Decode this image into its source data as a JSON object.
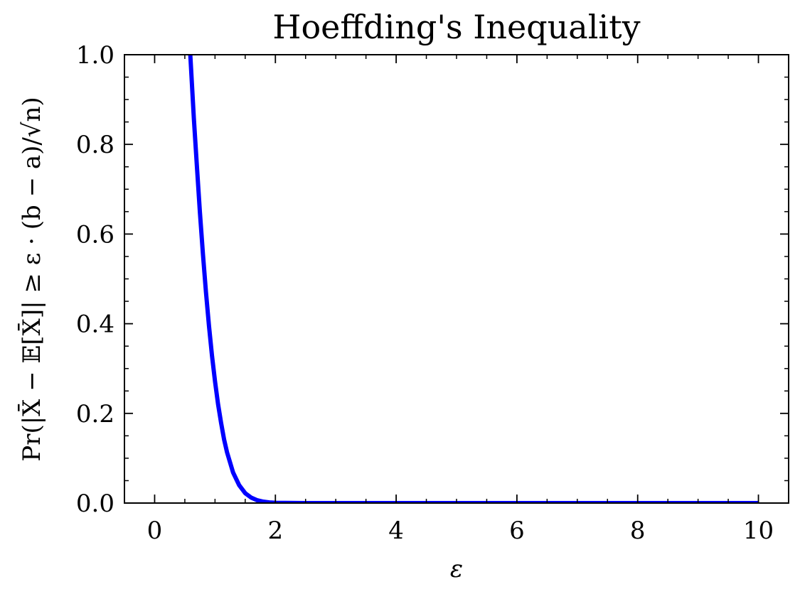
{
  "chart_data": {
    "type": "line",
    "title": "Hoeffding's Inequality",
    "xlabel": "ε",
    "ylabel": "Pr(|X̄ − 𝔼[X̄]| ≥ ε · (b − a)/√n)",
    "xlim": [
      -0.5,
      10.5
    ],
    "ylim": [
      0.0,
      1.0
    ],
    "x_ticks": [
      "0",
      "2",
      "4",
      "6",
      "8",
      "10"
    ],
    "y_ticks": [
      "0.0",
      "0.2",
      "0.4",
      "0.6",
      "0.8",
      "1.0"
    ],
    "grid": false,
    "series": [
      {
        "color": "#0000ff",
        "x": [
          0.59,
          0.65,
          0.7,
          0.75,
          0.8,
          0.85,
          0.9,
          0.95,
          1.0,
          1.05,
          1.1,
          1.15,
          1.2,
          1.3,
          1.4,
          1.5,
          1.6,
          1.7,
          1.8,
          1.9,
          2.0,
          2.5,
          3.0,
          4.0,
          5.0,
          6.0,
          7.0,
          8.0,
          9.0,
          10.0
        ],
        "y": [
          1.0,
          0.858,
          0.751,
          0.649,
          0.555,
          0.471,
          0.395,
          0.329,
          0.271,
          0.221,
          0.179,
          0.142,
          0.113,
          0.068,
          0.04,
          0.022,
          0.012,
          0.0062,
          0.0031,
          0.0015,
          0.0007,
          0.0,
          0.0,
          0.0,
          0.0,
          0.0,
          0.0,
          0.0,
          0.0,
          0.0
        ]
      }
    ]
  }
}
